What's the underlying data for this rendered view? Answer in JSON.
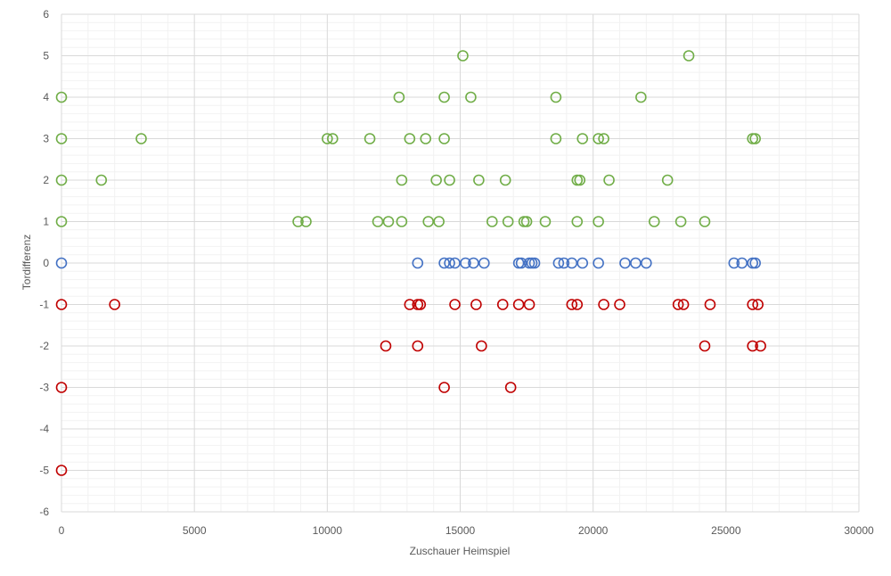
{
  "chart_data": {
    "type": "scatter",
    "xlabel": "Zuschauer Heimspiel",
    "ylabel": "Tordifferenz",
    "xlim": [
      0,
      30000
    ],
    "ylim": [
      -6,
      6
    ],
    "x_ticks": [
      0,
      5000,
      10000,
      15000,
      20000,
      25000,
      30000
    ],
    "y_ticks": [
      -6,
      -5,
      -4,
      -3,
      -2,
      -1,
      0,
      1,
      2,
      3,
      4,
      5,
      6
    ],
    "grid": true,
    "legend": "none",
    "colors": {
      "positive": "#70ad47",
      "zero": "#4472c4",
      "negative": "#c00000",
      "major_grid": "#d9d9d9",
      "minor_grid": "#f2f2f2"
    },
    "series": [
      {
        "color": "#70ad47",
        "points": [
          [
            0,
            4
          ],
          [
            0,
            3
          ],
          [
            0,
            2
          ],
          [
            0,
            1
          ],
          [
            1500,
            2
          ],
          [
            3000,
            3
          ],
          [
            8900,
            1
          ],
          [
            9200,
            1
          ],
          [
            10000,
            3
          ],
          [
            10200,
            3
          ],
          [
            11600,
            3
          ],
          [
            11900,
            1
          ],
          [
            12300,
            1
          ],
          [
            12700,
            4
          ],
          [
            12800,
            2
          ],
          [
            12800,
            1
          ],
          [
            13100,
            3
          ],
          [
            13700,
            3
          ],
          [
            13800,
            1
          ],
          [
            14100,
            2
          ],
          [
            14200,
            1
          ],
          [
            14400,
            4
          ],
          [
            14400,
            3
          ],
          [
            14600,
            2
          ],
          [
            15100,
            5
          ],
          [
            15400,
            4
          ],
          [
            15700,
            2
          ],
          [
            16200,
            1
          ],
          [
            16700,
            2
          ],
          [
            16800,
            1
          ],
          [
            17400,
            1
          ],
          [
            17500,
            1
          ],
          [
            18200,
            1
          ],
          [
            18600,
            4
          ],
          [
            18600,
            3
          ],
          [
            19400,
            2
          ],
          [
            19400,
            1
          ],
          [
            19500,
            2
          ],
          [
            19600,
            3
          ],
          [
            20200,
            3
          ],
          [
            20200,
            1
          ],
          [
            20400,
            3
          ],
          [
            20600,
            2
          ],
          [
            21800,
            4
          ],
          [
            22300,
            1
          ],
          [
            22800,
            2
          ],
          [
            23300,
            1
          ],
          [
            23600,
            5
          ],
          [
            24200,
            1
          ],
          [
            26000,
            3
          ],
          [
            26100,
            3
          ]
        ]
      },
      {
        "color": "#4472c4",
        "points": [
          [
            0,
            0
          ],
          [
            13400,
            0
          ],
          [
            14400,
            0
          ],
          [
            14600,
            0
          ],
          [
            14800,
            0
          ],
          [
            15200,
            0
          ],
          [
            15500,
            0
          ],
          [
            15900,
            0
          ],
          [
            17200,
            0
          ],
          [
            17300,
            0
          ],
          [
            17600,
            0
          ],
          [
            17700,
            0
          ],
          [
            17800,
            0
          ],
          [
            18700,
            0
          ],
          [
            18900,
            0
          ],
          [
            19200,
            0
          ],
          [
            19600,
            0
          ],
          [
            20200,
            0
          ],
          [
            21200,
            0
          ],
          [
            21600,
            0
          ],
          [
            22000,
            0
          ],
          [
            25300,
            0
          ],
          [
            25600,
            0
          ],
          [
            26000,
            0
          ],
          [
            26100,
            0
          ]
        ]
      },
      {
        "color": "#c00000",
        "points": [
          [
            0,
            -1
          ],
          [
            0,
            -3
          ],
          [
            0,
            -5
          ],
          [
            2000,
            -1
          ],
          [
            12200,
            -2
          ],
          [
            13100,
            -1
          ],
          [
            13400,
            -1
          ],
          [
            13500,
            -1
          ],
          [
            13400,
            -2
          ],
          [
            14400,
            -3
          ],
          [
            14800,
            -1
          ],
          [
            15600,
            -1
          ],
          [
            15800,
            -2
          ],
          [
            16600,
            -1
          ],
          [
            16900,
            -3
          ],
          [
            17200,
            -1
          ],
          [
            17600,
            -1
          ],
          [
            19200,
            -1
          ],
          [
            19400,
            -1
          ],
          [
            20400,
            -1
          ],
          [
            21000,
            -1
          ],
          [
            23200,
            -1
          ],
          [
            23400,
            -1
          ],
          [
            24200,
            -2
          ],
          [
            24400,
            -1
          ],
          [
            26000,
            -1
          ],
          [
            26000,
            -2
          ],
          [
            26200,
            -1
          ],
          [
            26300,
            -2
          ]
        ]
      }
    ]
  }
}
